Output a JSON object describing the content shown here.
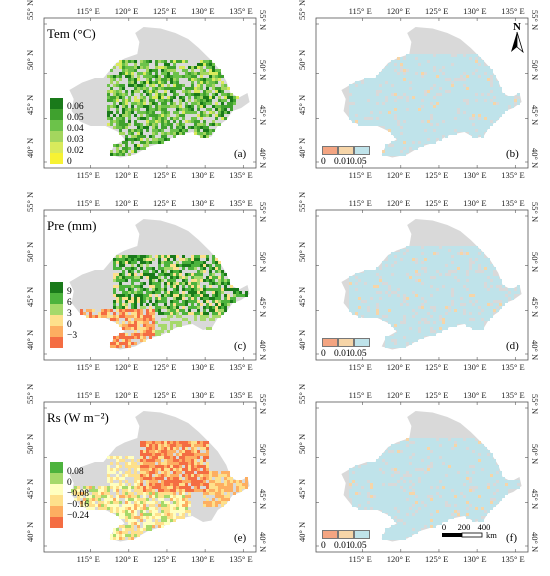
{
  "lon_labels": [
    "115° E",
    "120° E",
    "125° E",
    "130° E",
    "135° E"
  ],
  "lat_labels": [
    "55° N",
    "50° N",
    "45° N",
    "40° N"
  ],
  "north_label": "N",
  "p_legend": {
    "labels": [
      "0",
      "0.01",
      "0.05"
    ],
    "colors": [
      "#f4a582",
      "#f6d5a8",
      "#bfe3ea"
    ]
  },
  "panels": [
    {
      "id": "a",
      "label": "(a)",
      "title": "Tem (°C)",
      "map_scheme": "green",
      "legend": {
        "labels": [
          "0.06",
          "0.05",
          "0.04",
          "0.03",
          "0.02",
          "0"
        ],
        "colors": [
          "#1a7a1a",
          "#3fa12e",
          "#6cc24a",
          "#a4d65e",
          "#d9ea5c",
          "#f7f234"
        ]
      }
    },
    {
      "id": "b",
      "label": "(b)",
      "title": "",
      "map_scheme": "p",
      "show_north": true
    },
    {
      "id": "c",
      "label": "(c)",
      "title": "Pre (mm)",
      "map_scheme": "mixed-green",
      "legend": {
        "labels": [
          "9",
          "6",
          "3",
          "0",
          "−3"
        ],
        "colors": [
          "#1a7a1a",
          "#4db33d",
          "#a6d96a",
          "#fee08b",
          "#fdae61",
          "#f46d43"
        ]
      }
    },
    {
      "id": "d",
      "label": "(d)",
      "title": "",
      "map_scheme": "p"
    },
    {
      "id": "e",
      "label": "(e)",
      "title": "Rs (W m⁻²)",
      "map_scheme": "orange",
      "legend": {
        "labels": [
          "0.08",
          "0",
          "−0.08",
          "−0.16",
          "−0.24"
        ],
        "colors": [
          "#4db33d",
          "#a6d96a",
          "#ffffbf",
          "#fee08b",
          "#fdae61",
          "#f46d43"
        ]
      }
    },
    {
      "id": "f",
      "label": "(f)",
      "title": "",
      "map_scheme": "p",
      "show_scale": true
    }
  ],
  "scale_bar": {
    "ticks": [
      "0",
      "200",
      "400"
    ],
    "unit": "km"
  },
  "colors": {
    "land": "#d9d9d9",
    "frame": "#555555",
    "p_sig": "#bfe3ea"
  }
}
